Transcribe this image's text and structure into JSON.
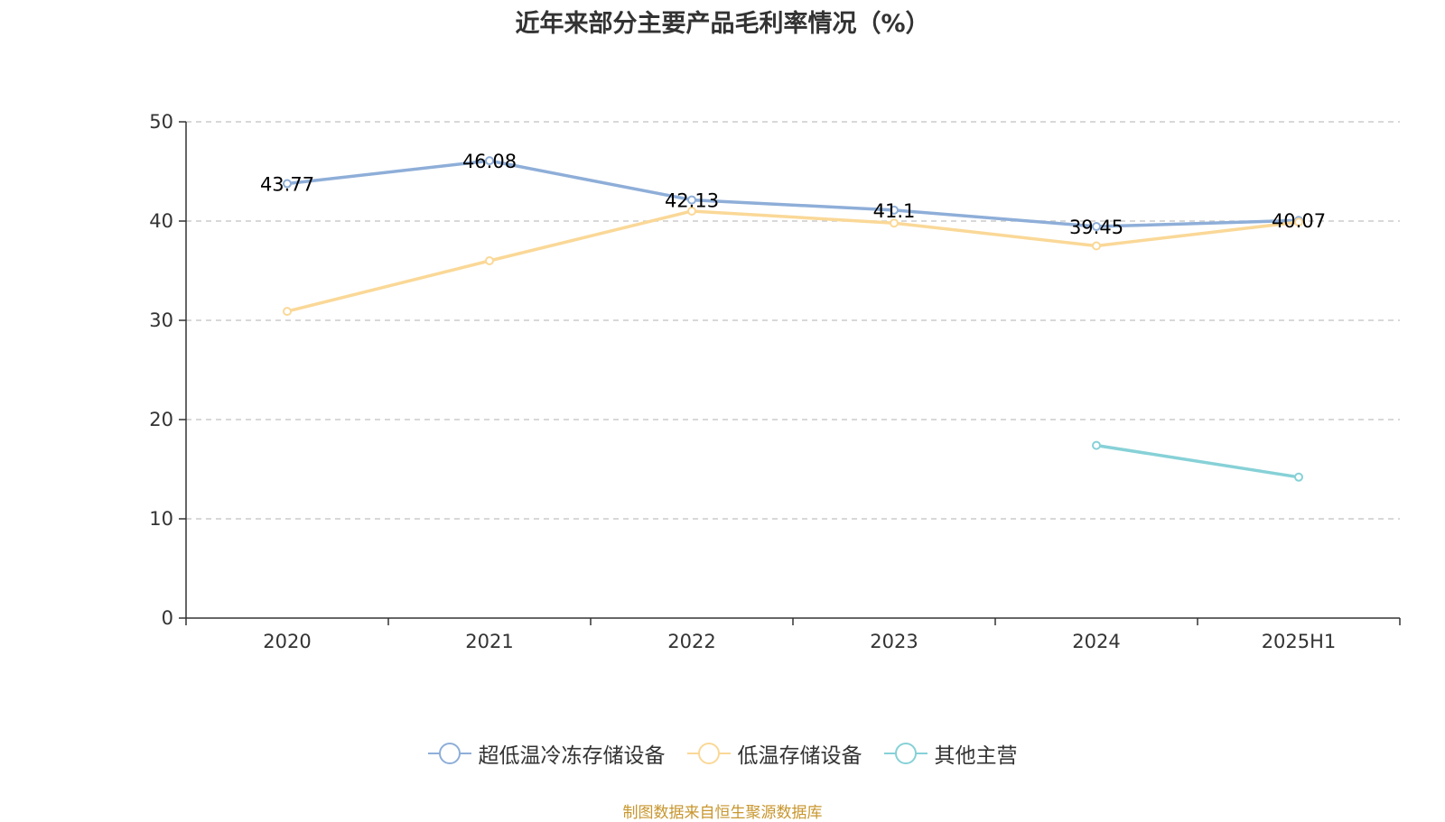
{
  "chart_data": {
    "type": "line",
    "title": "近年来部分主要产品毛利率情况（%）",
    "categories": [
      "2020",
      "2021",
      "2022",
      "2023",
      "2024",
      "2025H1"
    ],
    "ylim": [
      0,
      50
    ],
    "yticks": [
      0,
      10,
      20,
      30,
      40,
      50
    ],
    "grid": true,
    "legend_position": "bottom",
    "series": [
      {
        "name": "超低温冷冻存储设备",
        "color": "#8eaed8",
        "values": [
          43.77,
          46.08,
          42.13,
          41.1,
          39.45,
          40.07
        ],
        "show_labels": true
      },
      {
        "name": "低温存储设备",
        "color": "#fad897",
        "values": [
          30.9,
          36.0,
          41.0,
          39.8,
          37.5,
          39.9
        ],
        "show_labels": false
      },
      {
        "name": "其他主营",
        "color": "#86d1d7",
        "values": [
          null,
          null,
          null,
          null,
          17.4,
          14.2
        ],
        "show_labels": false
      }
    ]
  },
  "source": "制图数据来自恒生聚源数据库"
}
